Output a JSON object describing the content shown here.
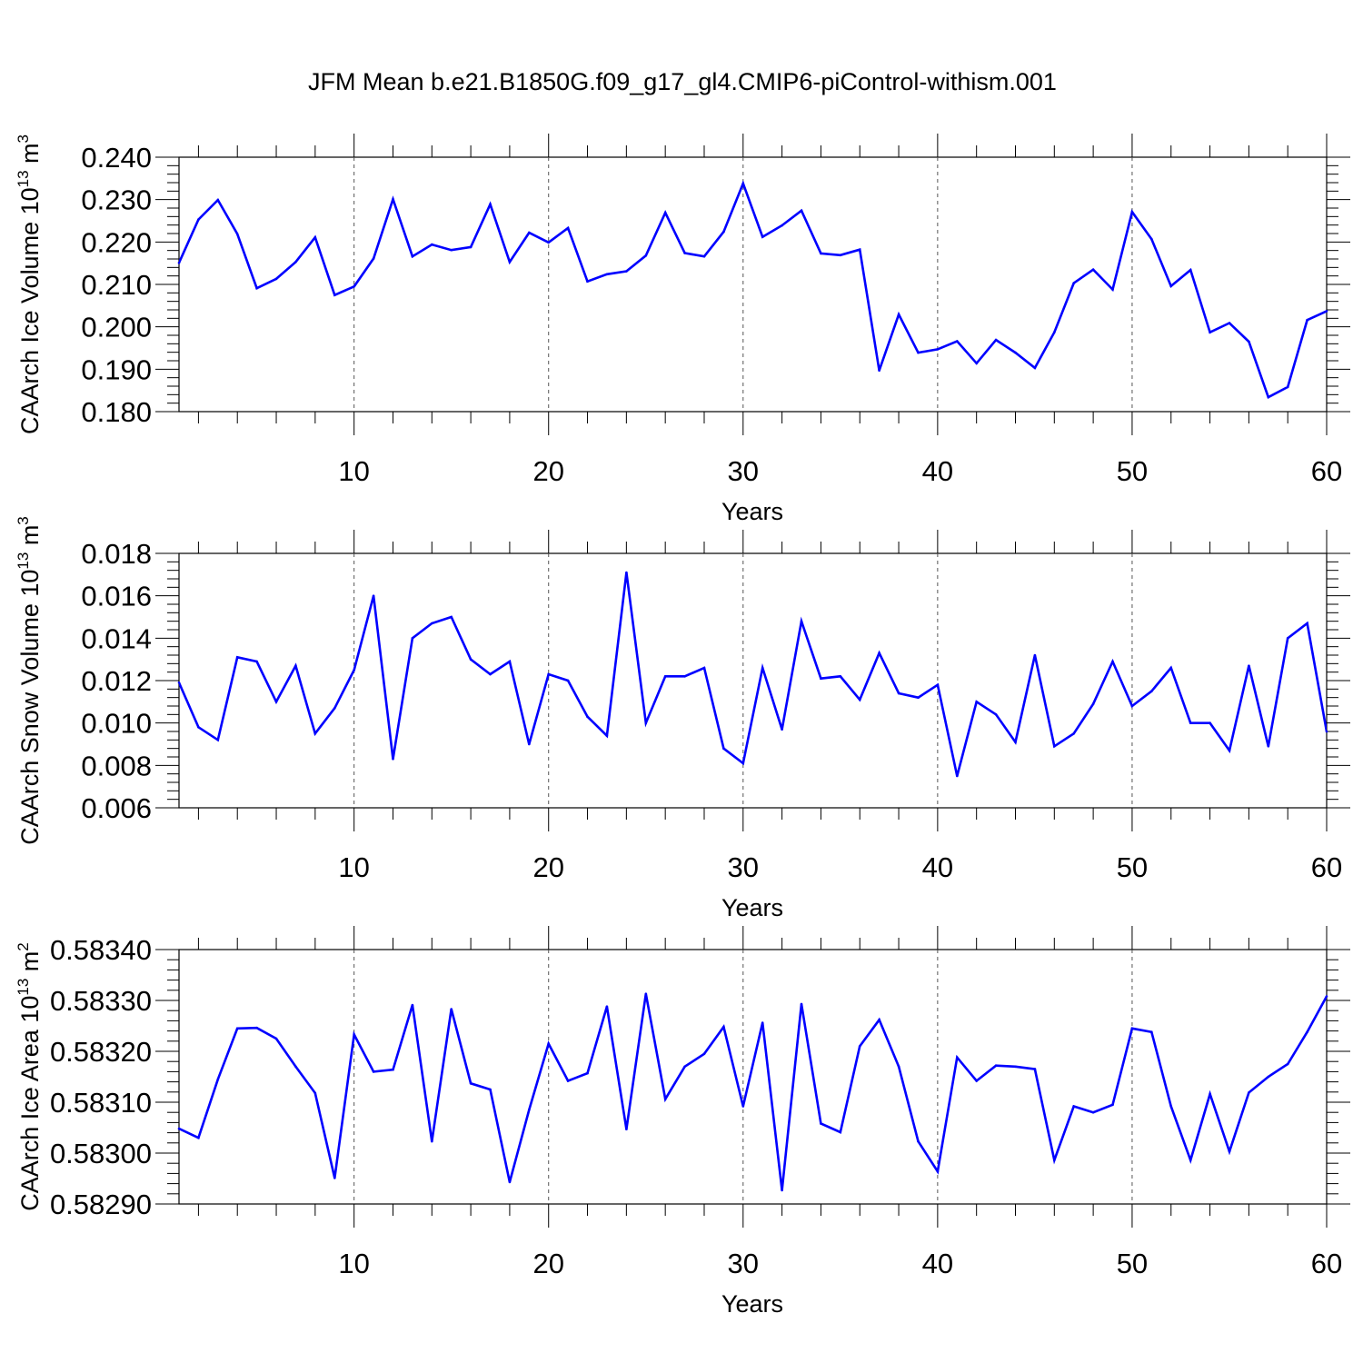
{
  "figure": {
    "title": "JFM Mean b.e21.B1850G.f09_g17_gl4.CMIP6-piControl-withism.001",
    "line_color": "#0000ff"
  },
  "chart_data": [
    {
      "type": "line",
      "name": "ice-volume",
      "ylabel": {
        "text": "CAArch Ice Volume 10",
        "exponent": "13",
        "unit": "m",
        "unit_exponent": "3"
      },
      "xlabel": "Years",
      "xlim": [
        1,
        60
      ],
      "ylim": [
        0.18,
        0.24
      ],
      "yticks": [
        "0.180",
        "0.190",
        "0.200",
        "0.210",
        "0.220",
        "0.230",
        "0.240"
      ],
      "xticks": [
        "10",
        "20",
        "30",
        "40",
        "50",
        "60"
      ],
      "x": [
        1,
        2,
        3,
        4,
        5,
        6,
        7,
        8,
        9,
        10,
        11,
        12,
        13,
        14,
        15,
        16,
        17,
        18,
        19,
        20,
        21,
        22,
        23,
        24,
        25,
        26,
        27,
        28,
        29,
        30,
        31,
        32,
        33,
        34,
        35,
        36,
        37,
        38,
        39,
        40,
        41,
        42,
        43,
        44,
        45,
        46,
        47,
        48,
        49,
        50,
        51,
        52,
        53,
        54,
        55,
        56,
        57,
        58,
        59,
        60
      ],
      "values": [
        0.2151,
        0.2253,
        0.2299,
        0.2219,
        0.2091,
        0.2113,
        0.2153,
        0.2211,
        0.2075,
        0.2095,
        0.2161,
        0.2301,
        0.2166,
        0.2194,
        0.2181,
        0.2188,
        0.2289,
        0.2153,
        0.2222,
        0.2199,
        0.2233,
        0.2107,
        0.2124,
        0.2131,
        0.2168,
        0.2269,
        0.2174,
        0.2166,
        0.2224,
        0.2338,
        0.2212,
        0.2239,
        0.2274,
        0.2173,
        0.2169,
        0.2182,
        0.1897,
        0.2029,
        0.1939,
        0.1947,
        0.1966,
        0.1914,
        0.1969,
        0.1939,
        0.1903,
        0.1987,
        0.2103,
        0.2135,
        0.2088,
        0.2271,
        0.2207,
        0.2096,
        0.2134,
        0.1987,
        0.2009,
        0.1965,
        0.1834,
        0.1858,
        0.2016,
        0.2037
      ]
    },
    {
      "type": "line",
      "name": "snow-volume",
      "ylabel": {
        "text": "CAArch Snow Volume 10",
        "exponent": "13",
        "unit": "m",
        "unit_exponent": "3"
      },
      "xlabel": "Years",
      "xlim": [
        1,
        60
      ],
      "ylim": [
        0.006,
        0.018
      ],
      "yticks": [
        "0.006",
        "0.008",
        "0.010",
        "0.012",
        "0.014",
        "0.016",
        "0.018"
      ],
      "xticks": [
        "10",
        "20",
        "30",
        "40",
        "50",
        "60"
      ],
      "x": [
        1,
        2,
        3,
        4,
        5,
        6,
        7,
        8,
        9,
        10,
        11,
        12,
        13,
        14,
        15,
        16,
        17,
        18,
        19,
        20,
        21,
        22,
        23,
        24,
        25,
        26,
        27,
        28,
        29,
        30,
        31,
        32,
        33,
        34,
        35,
        36,
        37,
        38,
        39,
        40,
        41,
        42,
        43,
        44,
        45,
        46,
        47,
        48,
        49,
        50,
        51,
        52,
        53,
        54,
        55,
        56,
        57,
        58,
        59,
        60
      ],
      "values": [
        0.0119,
        0.0098,
        0.0092,
        0.0131,
        0.0129,
        0.011,
        0.0127,
        0.0095,
        0.0107,
        0.0125,
        0.016,
        0.0083,
        0.014,
        0.0147,
        0.015,
        0.013,
        0.0123,
        0.0129,
        0.009,
        0.0123,
        0.012,
        0.0103,
        0.0094,
        0.0171,
        0.01,
        0.0122,
        0.0122,
        0.0126,
        0.0088,
        0.0081,
        0.0126,
        0.0097,
        0.0148,
        0.0121,
        0.0122,
        0.0111,
        0.0133,
        0.0114,
        0.0112,
        0.0118,
        0.0075,
        0.011,
        0.0104,
        0.0091,
        0.0132,
        0.0089,
        0.0095,
        0.0109,
        0.0129,
        0.0108,
        0.0115,
        0.0126,
        0.01,
        0.01,
        0.0087,
        0.0127,
        0.0089,
        0.014,
        0.0147,
        0.0096
      ]
    },
    {
      "type": "line",
      "name": "ice-area",
      "ylabel": {
        "text": "CAArch Ice Area 10",
        "exponent": "13",
        "unit": "m",
        "unit_exponent": "2"
      },
      "xlabel": "Years",
      "xlim": [
        1,
        60
      ],
      "ylim": [
        0.5829,
        0.5834
      ],
      "yticks": [
        "0.58290",
        "0.58300",
        "0.58310",
        "0.58320",
        "0.58330",
        "0.58340"
      ],
      "xticks": [
        "10",
        "20",
        "30",
        "40",
        "50",
        "60"
      ],
      "x": [
        1,
        2,
        3,
        4,
        5,
        6,
        7,
        8,
        9,
        10,
        11,
        12,
        13,
        14,
        15,
        16,
        17,
        18,
        19,
        20,
        21,
        22,
        23,
        24,
        25,
        26,
        27,
        28,
        29,
        30,
        31,
        32,
        33,
        34,
        35,
        36,
        37,
        38,
        39,
        40,
        41,
        42,
        43,
        44,
        45,
        46,
        47,
        48,
        49,
        50,
        51,
        52,
        53,
        54,
        55,
        56,
        57,
        58,
        59,
        60
      ],
      "values": [
        0.583048,
        0.58303,
        0.583145,
        0.583245,
        0.583246,
        0.583225,
        0.58317,
        0.583118,
        0.582951,
        0.583233,
        0.58316,
        0.583164,
        0.583291,
        0.583023,
        0.583283,
        0.583137,
        0.583125,
        0.582943,
        0.583085,
        0.583215,
        0.583142,
        0.583157,
        0.583288,
        0.583047,
        0.583313,
        0.583106,
        0.58317,
        0.583195,
        0.583248,
        0.583092,
        0.583256,
        0.582927,
        0.583293,
        0.583058,
        0.583041,
        0.58321,
        0.583262,
        0.58317,
        0.583023,
        0.582964,
        0.583188,
        0.583142,
        0.583172,
        0.58317,
        0.583165,
        0.582986,
        0.583092,
        0.58308,
        0.583095,
        0.583245,
        0.583238,
        0.583092,
        0.582986,
        0.583116,
        0.583003,
        0.583119,
        0.58315,
        0.583175,
        0.583238,
        0.583308
      ]
    }
  ]
}
